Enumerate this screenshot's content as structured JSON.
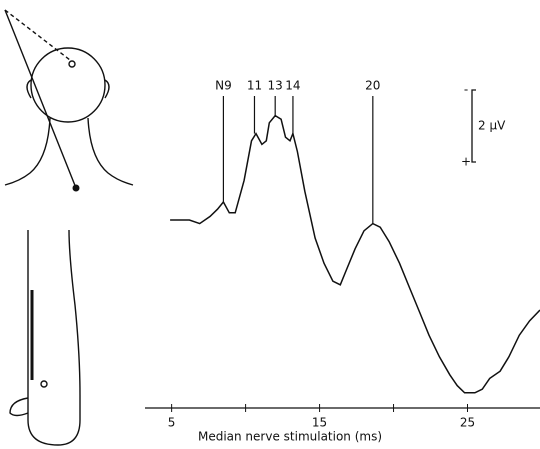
{
  "chart_data": {
    "type": "line",
    "xlabel": "Median nerve stimulation (ms)",
    "x": [
      4.9,
      5.5,
      6.2,
      6.9,
      7.6,
      8.1,
      8.5,
      8.9,
      9.3,
      9.9,
      10.4,
      10.7,
      11.1,
      11.4,
      11.6,
      12.0,
      12.4,
      12.7,
      13.0,
      13.2,
      13.5,
      14.0,
      14.7,
      15.3,
      15.9,
      16.4,
      16.8,
      17.4,
      18.0,
      18.6,
      19.1,
      19.7,
      20.4,
      21.1,
      21.8,
      22.4,
      23.1,
      23.8,
      24.3,
      24.8,
      25.5,
      26.0,
      26.5,
      27.2,
      27.8,
      28.5,
      29.2,
      29.9
    ],
    "series": [
      {
        "color": "#111111",
        "values": [
          0.0,
          0.0,
          0.0,
          0.1,
          -0.1,
          -0.3,
          -0.5,
          -0.2,
          -0.2,
          -1.1,
          -2.2,
          -2.4,
          -2.1,
          -2.2,
          -2.7,
          -2.9,
          -2.8,
          -2.3,
          -2.2,
          -2.4,
          -1.9,
          -0.8,
          0.5,
          1.2,
          1.7,
          1.8,
          1.4,
          0.8,
          0.3,
          0.1,
          0.2,
          0.6,
          1.2,
          1.9,
          2.6,
          3.2,
          3.8,
          4.3,
          4.6,
          4.8,
          4.8,
          4.7,
          4.4,
          4.2,
          3.8,
          3.2,
          2.8,
          2.5
        ]
      }
    ],
    "xlim": [
      3.2,
      29.9
    ],
    "xticks": [
      5,
      15,
      25
    ],
    "xminorticks": [
      10,
      20
    ],
    "ylim": [
      5.5,
      -4
    ],
    "peaks": [
      {
        "label": "N9",
        "x": 8.5,
        "y": -0.5
      },
      {
        "label": "11",
        "x": 10.6,
        "y": -2.4
      },
      {
        "label": "13",
        "x": 12.0,
        "y": -2.9
      },
      {
        "label": "14",
        "x": 13.2,
        "y": -2.4
      },
      {
        "label": "20",
        "x": 18.6,
        "y": 0.1
      }
    ],
    "scale_bar": {
      "label": "2 µV",
      "value": 2,
      "top": "-",
      "bottom": "+"
    }
  }
}
